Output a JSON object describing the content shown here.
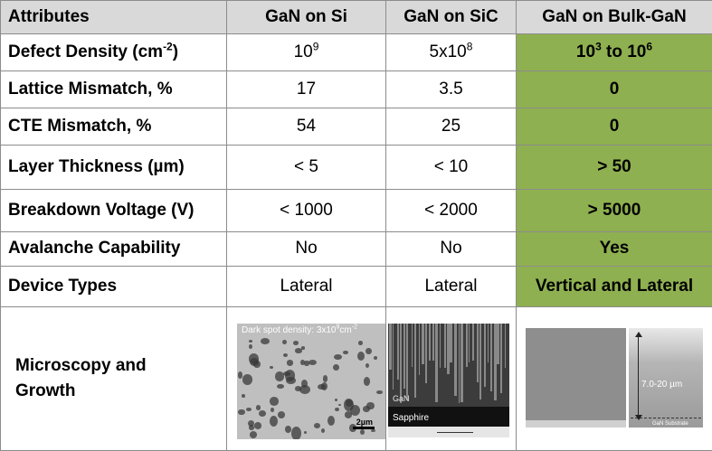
{
  "table": {
    "headers": [
      "Attributes",
      "GaN on Si",
      "GaN on SiC",
      "GaN on Bulk-GaN"
    ],
    "rows": [
      {
        "attribute": "Defect Density (cm",
        "attribute_sup": "-2",
        "attribute_tail": ")",
        "si": "10",
        "si_sup": "9",
        "sic": "5x10",
        "sic_sup": "8",
        "bulk_a": "10",
        "bulk_a_sup": "3",
        "bulk_mid": " to 10",
        "bulk_b_sup": "6"
      },
      {
        "attribute": "Lattice Mismatch, %",
        "si": "17",
        "sic": "3.5",
        "bulk": "0"
      },
      {
        "attribute": "CTE Mismatch, %",
        "si": "54",
        "sic": "25",
        "bulk": "0"
      },
      {
        "attribute": "Layer Thickness (µm)",
        "si": "< 5",
        "sic": "< 10",
        "bulk": "> 50"
      },
      {
        "attribute": "Breakdown Voltage (V)",
        "si": "< 1000",
        "sic": "< 2000",
        "bulk": "> 5000"
      },
      {
        "attribute": "Avalanche Capability",
        "si": "No",
        "sic": "No",
        "bulk": "Yes"
      },
      {
        "attribute": "Device Types",
        "si": "Lateral",
        "sic": "Lateral",
        "bulk": "Vertical and Lateral"
      }
    ],
    "microscopy_label_line1": "Microscopy and",
    "microscopy_label_line2": "Growth"
  },
  "images": {
    "spots": {
      "caption": "Dark spot density: 3x10",
      "caption_sup": "9",
      "caption_tail": "cm",
      "caption_tail_sup": "-2",
      "scale": "2µm"
    },
    "xsec": {
      "layer_top": "GaN",
      "layer_bottom": "Sapphire"
    },
    "bulk": {
      "thickness": "7.0-20 µm",
      "substrate": "GaN Substrate"
    }
  },
  "colors": {
    "header_bg": "#d9d9d9",
    "highlight_bg": "#8fb050",
    "border": "#8c8c8c"
  }
}
